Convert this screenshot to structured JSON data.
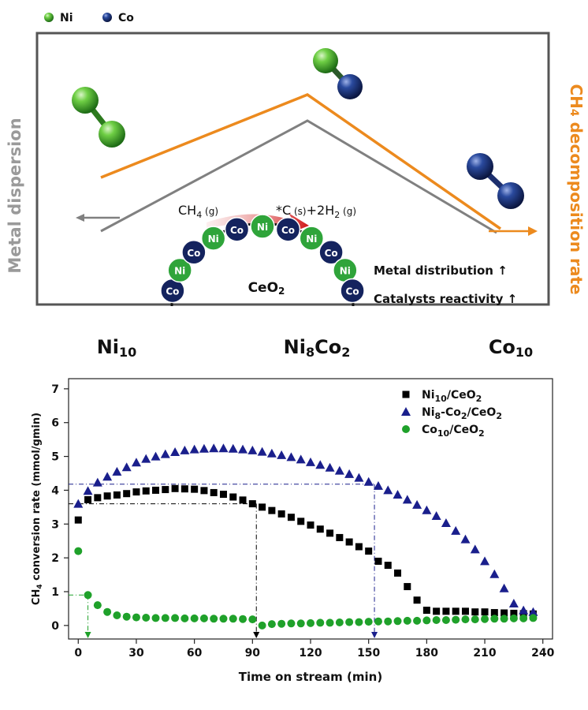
{
  "scheme": {
    "legend": [
      {
        "label": "Ni",
        "color": "#3aa63a"
      },
      {
        "label": "Co",
        "color": "#1d2f6e"
      }
    ],
    "left_axis_label": "Metal dispersion",
    "right_axis_label": "CH4 decomposition rate",
    "right_axis_parts": {
      "pre": "CH",
      "sub": "4",
      "post": " decomposition rate"
    },
    "reaction": {
      "reactant": "CH",
      "reactant_sub": "4",
      "reactant_state": " (g)",
      "product_c": "*C",
      "product_c_state": " (s)",
      "plus": "+2H",
      "h_sub": "2",
      "h_state": " (g)"
    },
    "support": {
      "pre": "CeO",
      "sub": "2"
    },
    "ring_atoms": [
      "Co",
      "Ni",
      "Co",
      "Ni",
      "Co",
      "Ni",
      "Co",
      "Ni",
      "Co",
      "Ni",
      "Co"
    ],
    "notes": [
      "Metal distribution ↑",
      "Catalysts reactivity ↑"
    ],
    "compositions": [
      {
        "label": "Ni10",
        "parts": [
          {
            "t": "Ni",
            "sub": false
          },
          {
            "t": "10",
            "sub": true
          }
        ]
      },
      {
        "label": "Ni8Co2",
        "parts": [
          {
            "t": "Ni",
            "sub": false
          },
          {
            "t": "8",
            "sub": true
          },
          {
            "t": "Co",
            "sub": false
          },
          {
            "t": "2",
            "sub": true
          }
        ]
      },
      {
        "label": "Co10",
        "parts": [
          {
            "t": "Co",
            "sub": false
          },
          {
            "t": "10",
            "sub": true
          }
        ]
      }
    ],
    "colors": {
      "dispersion_line": "#808080",
      "rate_line": "#ec8a1e",
      "frame": "#555555",
      "ni": "#3aa63a",
      "co": "#1d2f6e"
    }
  },
  "chart_data": {
    "type": "scatter",
    "xlabel": "Time on stream (min)",
    "ylabel": "CH4 conversion rate (mmol/gmin)",
    "xlim": [
      -5,
      245
    ],
    "ylim": [
      -0.4,
      7.3
    ],
    "xticks": [
      0,
      30,
      60,
      90,
      120,
      150,
      180,
      210,
      240
    ],
    "yticks": [
      0,
      1,
      2,
      3,
      4,
      5,
      6,
      7
    ],
    "grid": false,
    "legend_position": "top-right",
    "series": [
      {
        "name": "Ni10/CeO2",
        "marker": "square",
        "color": "#000000",
        "x": [
          0,
          5,
          10,
          15,
          20,
          25,
          30,
          35,
          40,
          45,
          50,
          55,
          60,
          65,
          70,
          75,
          80,
          85,
          90,
          95,
          100,
          105,
          110,
          115,
          120,
          125,
          130,
          135,
          140,
          145,
          150,
          155,
          160,
          165,
          170,
          175,
          180,
          185,
          190,
          195,
          200,
          205,
          210,
          215,
          220,
          225,
          230,
          235
        ],
        "y": [
          3.12,
          3.72,
          3.78,
          3.83,
          3.86,
          3.9,
          3.95,
          3.98,
          4.0,
          4.02,
          4.05,
          4.04,
          4.03,
          3.99,
          3.93,
          3.88,
          3.8,
          3.71,
          3.6,
          3.5,
          3.4,
          3.3,
          3.2,
          3.08,
          2.97,
          2.85,
          2.73,
          2.6,
          2.47,
          2.33,
          2.2,
          1.9,
          1.78,
          1.55,
          1.15,
          0.75,
          0.45,
          0.42,
          0.42,
          0.42,
          0.42,
          0.4,
          0.4,
          0.38,
          0.37,
          0.36,
          0.35,
          0.34
        ]
      },
      {
        "name": "Ni8-Co2/CeO2",
        "marker": "triangle",
        "color": "#1a1f8c",
        "x": [
          0,
          5,
          10,
          15,
          20,
          25,
          30,
          35,
          40,
          45,
          50,
          55,
          60,
          65,
          70,
          75,
          80,
          85,
          90,
          95,
          100,
          105,
          110,
          115,
          120,
          125,
          130,
          135,
          140,
          145,
          150,
          155,
          160,
          165,
          170,
          175,
          180,
          185,
          190,
          195,
          200,
          205,
          210,
          215,
          220,
          225,
          230,
          235
        ],
        "y": [
          3.6,
          3.98,
          4.23,
          4.4,
          4.55,
          4.68,
          4.82,
          4.93,
          5.0,
          5.07,
          5.13,
          5.18,
          5.21,
          5.23,
          5.24,
          5.24,
          5.23,
          5.21,
          5.18,
          5.14,
          5.09,
          5.04,
          4.98,
          4.91,
          4.83,
          4.75,
          4.67,
          4.58,
          4.48,
          4.37,
          4.25,
          4.13,
          4.0,
          3.87,
          3.72,
          3.57,
          3.41,
          3.24,
          3.03,
          2.8,
          2.55,
          2.25,
          1.9,
          1.52,
          1.1,
          0.65,
          0.45,
          0.4
        ]
      },
      {
        "name": "Co10/CeO2",
        "marker": "circle",
        "color": "#1fa12a",
        "x": [
          0,
          5,
          10,
          15,
          20,
          25,
          30,
          35,
          40,
          45,
          50,
          55,
          60,
          65,
          70,
          75,
          80,
          85,
          90,
          95,
          100,
          105,
          110,
          115,
          120,
          125,
          130,
          135,
          140,
          145,
          150,
          155,
          160,
          165,
          170,
          175,
          180,
          185,
          190,
          195,
          200,
          205,
          210,
          215,
          220,
          225,
          230,
          235
        ],
        "y": [
          2.2,
          0.9,
          0.6,
          0.4,
          0.3,
          0.26,
          0.24,
          0.23,
          0.22,
          0.22,
          0.22,
          0.21,
          0.21,
          0.21,
          0.2,
          0.2,
          0.2,
          0.19,
          0.18,
          0.0,
          0.04,
          0.05,
          0.06,
          0.06,
          0.07,
          0.08,
          0.08,
          0.09,
          0.1,
          0.1,
          0.11,
          0.12,
          0.12,
          0.13,
          0.14,
          0.14,
          0.15,
          0.16,
          0.16,
          0.17,
          0.18,
          0.18,
          0.19,
          0.2,
          0.2,
          0.21,
          0.21,
          0.22
        ]
      }
    ],
    "legend_entries": [
      {
        "parts": [
          {
            "t": "Ni",
            "sub": false
          },
          {
            "t": "10",
            "sub": true
          },
          {
            "t": "/CeO",
            "sub": false
          },
          {
            "t": "2",
            "sub": true
          }
        ]
      },
      {
        "parts": [
          {
            "t": "Ni",
            "sub": false
          },
          {
            "t": "8",
            "sub": true
          },
          {
            "t": "-Co",
            "sub": false
          },
          {
            "t": "2",
            "sub": true
          },
          {
            "t": "/CeO",
            "sub": false
          },
          {
            "t": "2",
            "sub": true
          }
        ]
      },
      {
        "parts": [
          {
            "t": "Co",
            "sub": false
          },
          {
            "t": "10",
            "sub": true
          },
          {
            "t": "/CeO",
            "sub": false
          },
          {
            "t": "2",
            "sub": true
          }
        ]
      }
    ],
    "reference_lines": [
      {
        "color": "#1fa12a",
        "y": 0.9,
        "x": 5
      },
      {
        "color": "#000000",
        "y": 3.6,
        "x": 92
      },
      {
        "color": "#1a1f8c",
        "y": 4.18,
        "x": 153
      }
    ]
  }
}
